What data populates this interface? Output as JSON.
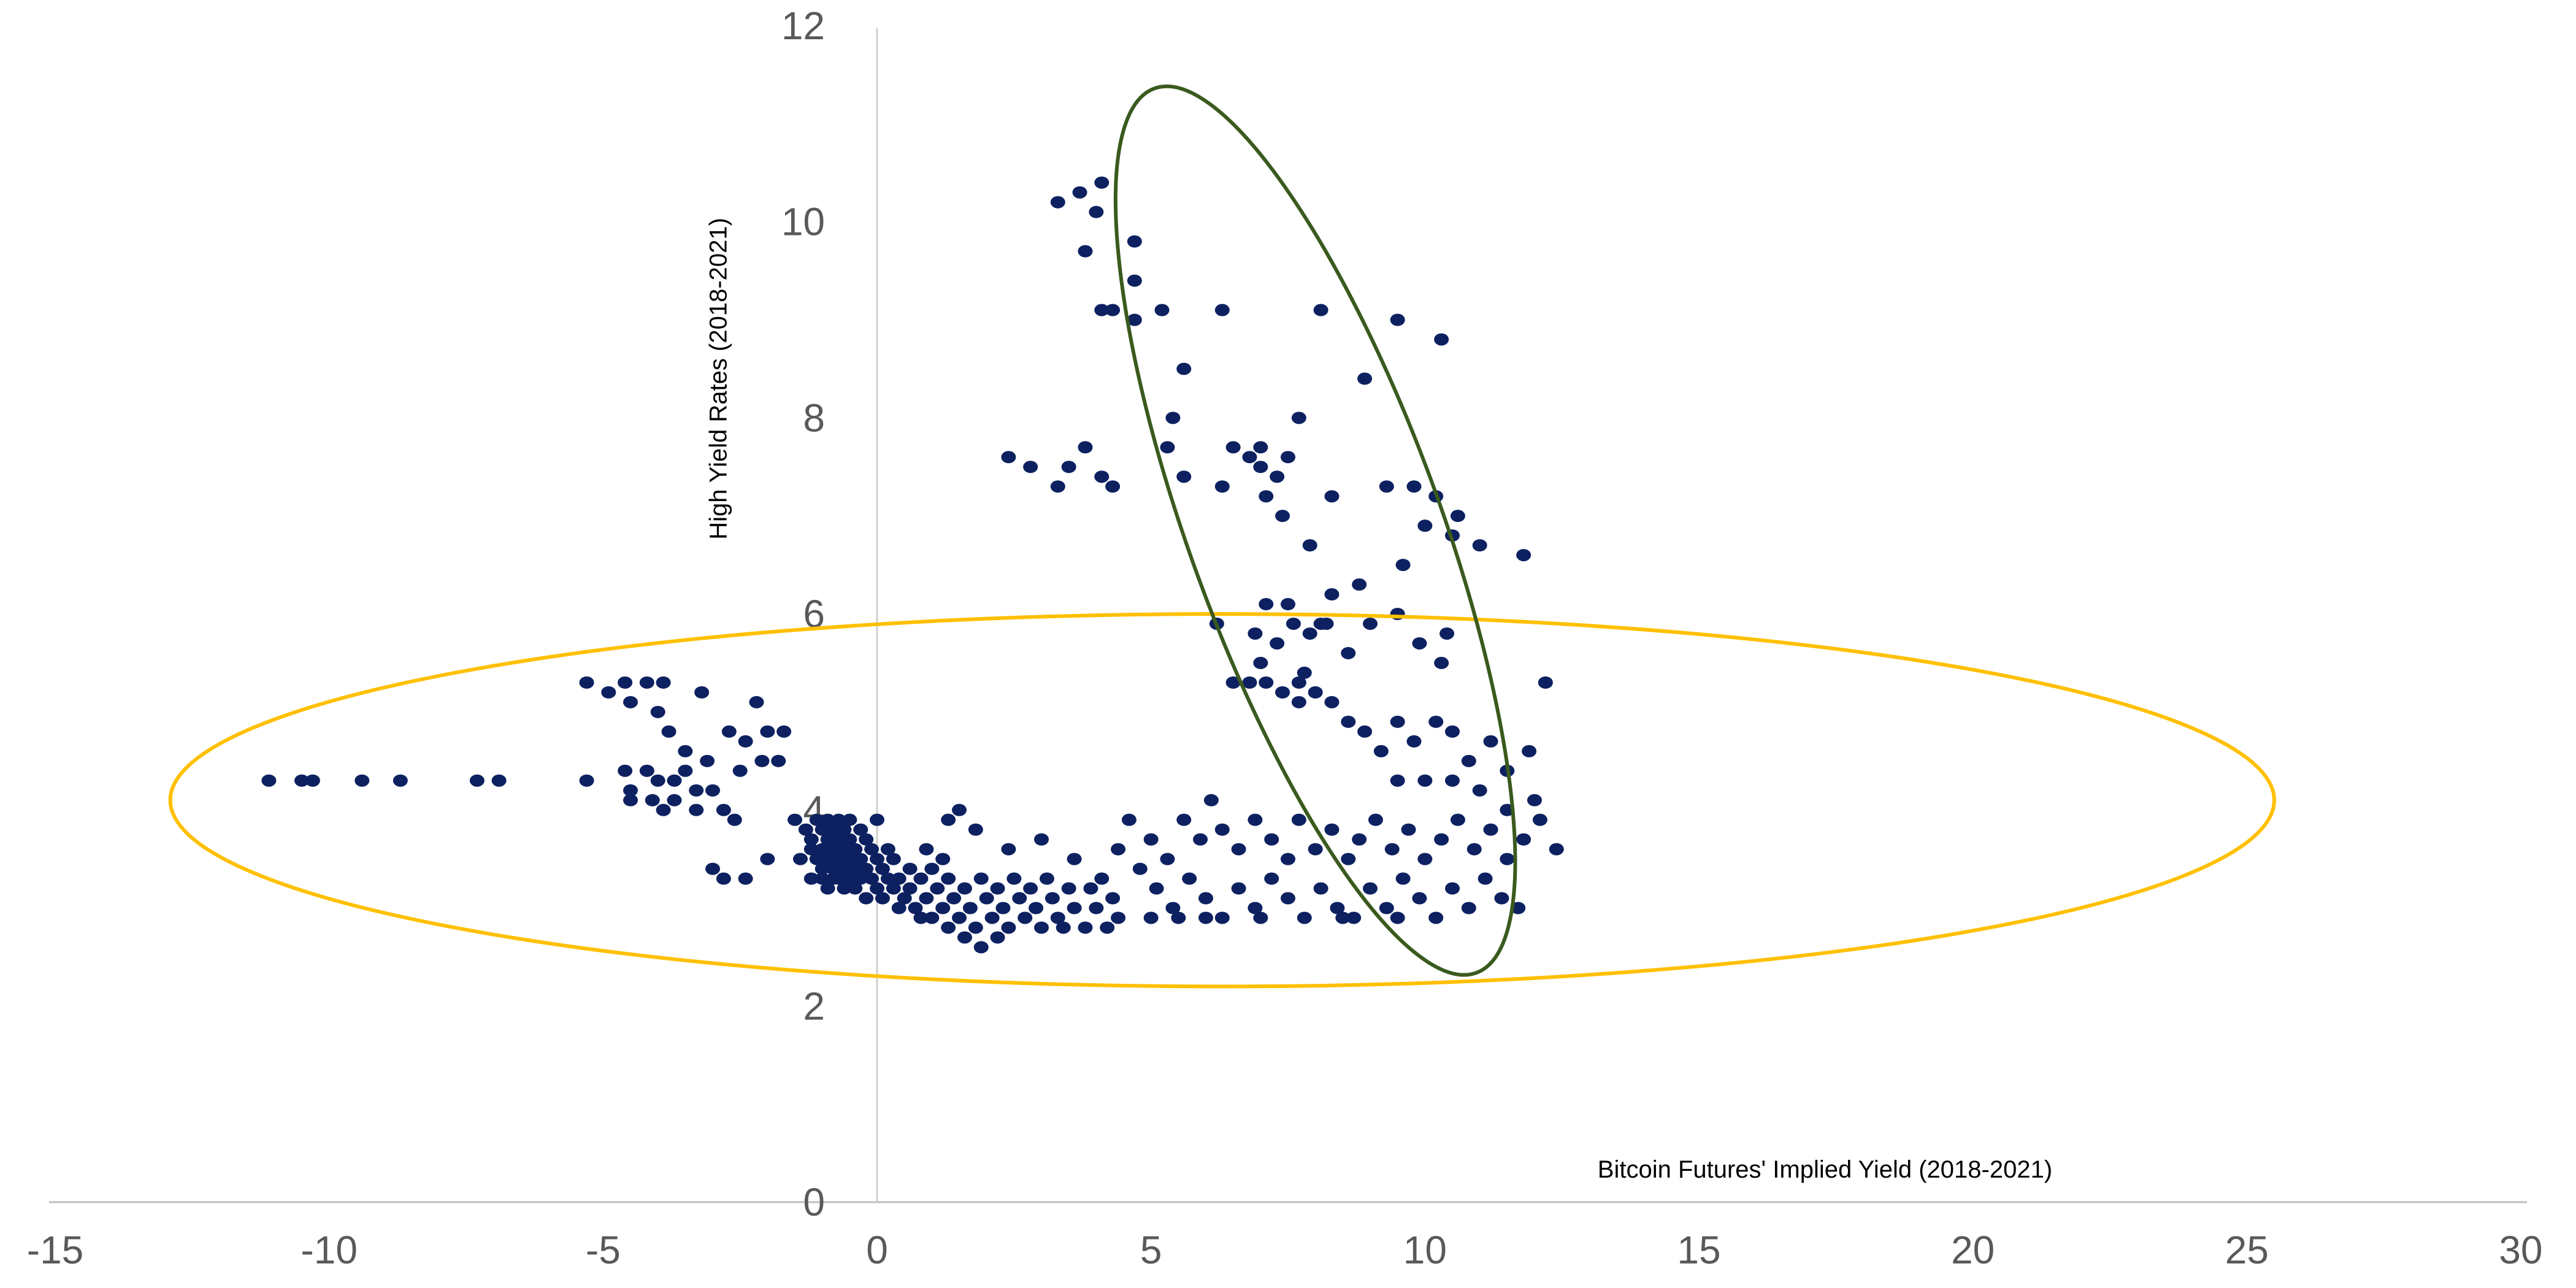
{
  "chart_data": {
    "type": "scatter",
    "title": "",
    "xlabel": "Bitcoin Futures' Implied Yield (2018-2021)",
    "ylabel": "High Yield Rates (2018-2021)",
    "xlim": [
      -15,
      30
    ],
    "ylim": [
      0,
      12
    ],
    "x_ticks": [
      -15,
      -10,
      -5,
      0,
      5,
      10,
      15,
      20,
      25,
      30
    ],
    "y_ticks": [
      0,
      2,
      4,
      6,
      8,
      10,
      12
    ],
    "x_tick_labels": [
      "-15",
      "-10",
      "-5",
      "0",
      "5",
      "10",
      "15",
      "20",
      "25",
      "30"
    ],
    "y_tick_labels": [
      "0",
      "2",
      "4",
      "6",
      "8",
      "10",
      "12"
    ],
    "grid": false,
    "legend": "none",
    "marker_color": "#0d2161",
    "annotations": [
      {
        "shape": "ellipse",
        "color": "#ffc000",
        "center": [
          6.3,
          4.1
        ],
        "radius_x": 19.2,
        "radius_y": 1.9,
        "rotation_deg": 0
      },
      {
        "shape": "ellipse",
        "color": "#3a5a1e",
        "center": [
          8.0,
          6.85
        ],
        "radius_x": 2.3,
        "radius_y": 4.8,
        "rotation_deg": -20
      }
    ],
    "series": [
      {
        "points": [
          [
            -11.1,
            4.3
          ],
          [
            -10.5,
            4.3
          ],
          [
            -10.3,
            4.3
          ],
          [
            -9.4,
            4.3
          ],
          [
            -8.7,
            4.3
          ],
          [
            -7.3,
            4.3
          ],
          [
            -6.9,
            4.3
          ],
          [
            -5.3,
            5.3
          ],
          [
            -5.3,
            4.3
          ],
          [
            -4.9,
            5.2
          ],
          [
            -4.6,
            5.3
          ],
          [
            -4.5,
            5.1
          ],
          [
            -4.2,
            5.3
          ],
          [
            -4.0,
            5.0
          ],
          [
            -3.9,
            5.3
          ],
          [
            -4.6,
            4.4
          ],
          [
            -4.5,
            4.2
          ],
          [
            -4.5,
            4.1
          ],
          [
            -4.2,
            4.4
          ],
          [
            -4.0,
            4.3
          ],
          [
            -4.1,
            4.1
          ],
          [
            -3.9,
            4.0
          ],
          [
            -3.8,
            4.8
          ],
          [
            -3.7,
            4.3
          ],
          [
            -3.7,
            4.1
          ],
          [
            -3.5,
            4.6
          ],
          [
            -3.5,
            4.4
          ],
          [
            -3.3,
            4.2
          ],
          [
            -3.3,
            4.0
          ],
          [
            -3.1,
            4.5
          ],
          [
            -3.0,
            4.2
          ],
          [
            -2.8,
            4.0
          ],
          [
            -2.6,
            3.9
          ],
          [
            -3.2,
            5.2
          ],
          [
            -2.7,
            4.8
          ],
          [
            -2.5,
            4.4
          ],
          [
            -2.4,
            4.7
          ],
          [
            -2.2,
            5.1
          ],
          [
            -2.1,
            4.5
          ],
          [
            -2.0,
            4.8
          ],
          [
            -1.8,
            4.5
          ],
          [
            -2.0,
            3.5
          ],
          [
            -2.4,
            3.3
          ],
          [
            -3.0,
            3.4
          ],
          [
            -2.8,
            3.3
          ],
          [
            -1.7,
            4.8
          ],
          [
            -1.5,
            3.9
          ],
          [
            -1.2,
            3.3
          ],
          [
            -1.0,
            3.3
          ],
          [
            -1.4,
            3.5
          ],
          [
            -0.8,
            3.3
          ],
          [
            -1.3,
            3.8
          ],
          [
            -1.2,
            3.7
          ],
          [
            -1.2,
            3.6
          ],
          [
            -1.1,
            3.9
          ],
          [
            -1.1,
            3.5
          ],
          [
            -1.0,
            3.8
          ],
          [
            -1.0,
            3.6
          ],
          [
            -1.0,
            3.4
          ],
          [
            -0.9,
            3.9
          ],
          [
            -0.9,
            3.7
          ],
          [
            -0.9,
            3.5
          ],
          [
            -0.9,
            3.2
          ],
          [
            -0.8,
            3.8
          ],
          [
            -0.8,
            3.6
          ],
          [
            -0.8,
            3.4
          ],
          [
            -0.7,
            3.9
          ],
          [
            -0.7,
            3.7
          ],
          [
            -0.7,
            3.5
          ],
          [
            -0.7,
            3.3
          ],
          [
            -0.6,
            3.8
          ],
          [
            -0.6,
            3.6
          ],
          [
            -0.6,
            3.4
          ],
          [
            -0.6,
            3.2
          ],
          [
            -0.5,
            3.9
          ],
          [
            -0.5,
            3.7
          ],
          [
            -0.5,
            3.5
          ],
          [
            -0.5,
            3.3
          ],
          [
            -0.4,
            3.6
          ],
          [
            -0.4,
            3.4
          ],
          [
            -0.4,
            3.2
          ],
          [
            -0.3,
            3.8
          ],
          [
            -0.3,
            3.5
          ],
          [
            -0.3,
            3.3
          ],
          [
            -0.2,
            3.7
          ],
          [
            -0.2,
            3.4
          ],
          [
            -0.2,
            3.1
          ],
          [
            -0.1,
            3.6
          ],
          [
            -0.1,
            3.3
          ],
          [
            0.0,
            3.9
          ],
          [
            0.0,
            3.5
          ],
          [
            0.0,
            3.2
          ],
          [
            0.1,
            3.4
          ],
          [
            0.1,
            3.1
          ],
          [
            0.2,
            3.6
          ],
          [
            0.2,
            3.3
          ],
          [
            0.3,
            3.2
          ],
          [
            0.3,
            3.5
          ],
          [
            0.4,
            3.3
          ],
          [
            0.5,
            3.1
          ],
          [
            0.4,
            3.0
          ],
          [
            0.6,
            3.4
          ],
          [
            0.6,
            3.2
          ],
          [
            0.7,
            3.0
          ],
          [
            0.8,
            2.9
          ],
          [
            0.8,
            3.3
          ],
          [
            0.9,
            3.1
          ],
          [
            1.0,
            2.9
          ],
          [
            1.0,
            3.4
          ],
          [
            1.1,
            3.2
          ],
          [
            1.2,
            3.0
          ],
          [
            1.3,
            2.8
          ],
          [
            1.3,
            3.3
          ],
          [
            1.4,
            3.1
          ],
          [
            1.5,
            2.9
          ],
          [
            1.6,
            2.7
          ],
          [
            1.6,
            3.2
          ],
          [
            1.7,
            3.0
          ],
          [
            1.8,
            2.8
          ],
          [
            1.9,
            2.6
          ],
          [
            1.9,
            3.3
          ],
          [
            2.0,
            3.1
          ],
          [
            2.1,
            2.9
          ],
          [
            2.2,
            2.7
          ],
          [
            2.2,
            3.2
          ],
          [
            2.3,
            3.0
          ],
          [
            2.4,
            2.8
          ],
          [
            2.5,
            3.3
          ],
          [
            2.6,
            3.1
          ],
          [
            2.7,
            2.9
          ],
          [
            2.8,
            3.2
          ],
          [
            2.9,
            3.0
          ],
          [
            3.0,
            2.8
          ],
          [
            3.1,
            3.3
          ],
          [
            3.2,
            3.1
          ],
          [
            3.3,
            2.9
          ],
          [
            3.4,
            2.8
          ],
          [
            3.5,
            3.2
          ],
          [
            3.6,
            3.0
          ],
          [
            3.8,
            2.8
          ],
          [
            3.9,
            3.2
          ],
          [
            4.0,
            3.0
          ],
          [
            4.1,
            3.3
          ],
          [
            4.2,
            2.8
          ],
          [
            4.3,
            3.1
          ],
          [
            4.4,
            2.9
          ],
          [
            0.9,
            3.6
          ],
          [
            1.3,
            3.9
          ],
          [
            1.5,
            4.0
          ],
          [
            1.8,
            3.8
          ],
          [
            1.2,
            3.5
          ],
          [
            2.4,
            3.6
          ],
          [
            3.0,
            3.7
          ],
          [
            3.6,
            3.5
          ],
          [
            4.4,
            3.6
          ],
          [
            4.6,
            3.9
          ],
          [
            5.0,
            3.7
          ],
          [
            5.3,
            3.5
          ],
          [
            5.6,
            3.9
          ],
          [
            5.9,
            3.7
          ],
          [
            6.1,
            4.1
          ],
          [
            6.3,
            3.8
          ],
          [
            6.6,
            3.6
          ],
          [
            6.9,
            3.9
          ],
          [
            7.2,
            3.7
          ],
          [
            7.5,
            3.5
          ],
          [
            7.7,
            3.9
          ],
          [
            8.0,
            3.6
          ],
          [
            8.3,
            3.8
          ],
          [
            8.6,
            3.5
          ],
          [
            8.8,
            3.7
          ],
          [
            9.1,
            3.9
          ],
          [
            9.4,
            3.6
          ],
          [
            9.7,
            3.8
          ],
          [
            10.0,
            3.5
          ],
          [
            10.3,
            3.7
          ],
          [
            10.6,
            3.9
          ],
          [
            10.9,
            3.6
          ],
          [
            11.2,
            3.8
          ],
          [
            11.5,
            3.5
          ],
          [
            11.8,
            3.7
          ],
          [
            12.1,
            3.9
          ],
          [
            12.4,
            3.6
          ],
          [
            4.8,
            3.4
          ],
          [
            5.1,
            3.2
          ],
          [
            5.4,
            3.0
          ],
          [
            5.7,
            3.3
          ],
          [
            6.0,
            3.1
          ],
          [
            6.3,
            2.9
          ],
          [
            6.6,
            3.2
          ],
          [
            6.9,
            3.0
          ],
          [
            7.2,
            3.3
          ],
          [
            7.5,
            3.1
          ],
          [
            7.8,
            2.9
          ],
          [
            8.1,
            3.2
          ],
          [
            8.4,
            3.0
          ],
          [
            8.7,
            2.9
          ],
          [
            9.0,
            3.2
          ],
          [
            9.3,
            3.0
          ],
          [
            9.6,
            3.3
          ],
          [
            9.9,
            3.1
          ],
          [
            10.2,
            2.9
          ],
          [
            10.5,
            3.2
          ],
          [
            10.8,
            3.0
          ],
          [
            11.1,
            3.3
          ],
          [
            11.4,
            3.1
          ],
          [
            11.7,
            3.0
          ],
          [
            5.0,
            2.9
          ],
          [
            5.5,
            2.9
          ],
          [
            6.0,
            2.9
          ],
          [
            7.0,
            2.9
          ],
          [
            8.5,
            2.9
          ],
          [
            9.5,
            2.9
          ],
          [
            12.2,
            5.3
          ],
          [
            11.9,
            4.6
          ],
          [
            11.5,
            4.4
          ],
          [
            11.2,
            4.7
          ],
          [
            10.8,
            4.5
          ],
          [
            10.5,
            4.8
          ],
          [
            10.2,
            4.9
          ],
          [
            9.8,
            4.7
          ],
          [
            9.5,
            4.9
          ],
          [
            9.2,
            4.6
          ],
          [
            8.9,
            4.8
          ],
          [
            8.6,
            4.9
          ],
          [
            8.3,
            5.1
          ],
          [
            8.0,
            5.2
          ],
          [
            7.7,
            5.3
          ],
          [
            7.4,
            5.2
          ],
          [
            7.1,
            5.3
          ],
          [
            6.8,
            5.3
          ],
          [
            6.5,
            5.3
          ],
          [
            9.5,
            4.3
          ],
          [
            10.0,
            4.3
          ],
          [
            10.5,
            4.3
          ],
          [
            11.0,
            4.2
          ],
          [
            11.5,
            4.0
          ],
          [
            12.0,
            4.1
          ],
          [
            7.0,
            5.5
          ],
          [
            7.3,
            5.7
          ],
          [
            7.6,
            5.9
          ],
          [
            7.9,
            5.8
          ],
          [
            8.2,
            5.9
          ],
          [
            8.6,
            5.6
          ],
          [
            9.0,
            5.9
          ],
          [
            9.5,
            6.0
          ],
          [
            9.9,
            5.7
          ],
          [
            10.3,
            5.5
          ],
          [
            10.4,
            5.8
          ],
          [
            7.1,
            6.1
          ],
          [
            7.5,
            6.1
          ],
          [
            6.9,
            5.8
          ],
          [
            7.8,
            5.4
          ],
          [
            8.8,
            6.3
          ],
          [
            8.3,
            6.2
          ],
          [
            9.6,
            6.5
          ],
          [
            10.0,
            6.9
          ],
          [
            10.5,
            6.8
          ],
          [
            11.0,
            6.7
          ],
          [
            11.8,
            6.6
          ],
          [
            7.9,
            6.7
          ],
          [
            8.3,
            7.2
          ],
          [
            9.3,
            7.3
          ],
          [
            9.8,
            7.3
          ],
          [
            10.2,
            7.2
          ],
          [
            10.6,
            7.0
          ],
          [
            8.1,
            5.9
          ],
          [
            6.2,
            5.9
          ],
          [
            7.7,
            5.1
          ],
          [
            2.4,
            7.6
          ],
          [
            2.8,
            7.5
          ],
          [
            3.3,
            7.3
          ],
          [
            3.5,
            7.5
          ],
          [
            3.8,
            7.7
          ],
          [
            4.1,
            7.4
          ],
          [
            4.3,
            7.3
          ],
          [
            5.3,
            7.7
          ],
          [
            5.6,
            7.4
          ],
          [
            6.3,
            7.3
          ],
          [
            6.5,
            7.7
          ],
          [
            6.8,
            7.6
          ],
          [
            7.0,
            7.5
          ],
          [
            7.3,
            7.4
          ],
          [
            7.5,
            7.6
          ],
          [
            7.1,
            7.2
          ],
          [
            7.4,
            7.0
          ],
          [
            7.0,
            7.7
          ],
          [
            5.4,
            8.0
          ],
          [
            7.7,
            8.0
          ],
          [
            5.6,
            8.5
          ],
          [
            3.3,
            10.2
          ],
          [
            3.7,
            10.3
          ],
          [
            4.1,
            10.4
          ],
          [
            4.0,
            10.1
          ],
          [
            3.8,
            9.7
          ],
          [
            4.7,
            9.8
          ],
          [
            4.1,
            9.1
          ],
          [
            4.3,
            9.1
          ],
          [
            4.7,
            9.0
          ],
          [
            5.2,
            9.1
          ],
          [
            6.3,
            9.1
          ],
          [
            8.1,
            9.1
          ],
          [
            9.5,
            9.0
          ],
          [
            4.7,
            9.4
          ],
          [
            10.3,
            8.8
          ],
          [
            8.9,
            8.4
          ]
        ]
      }
    ]
  }
}
